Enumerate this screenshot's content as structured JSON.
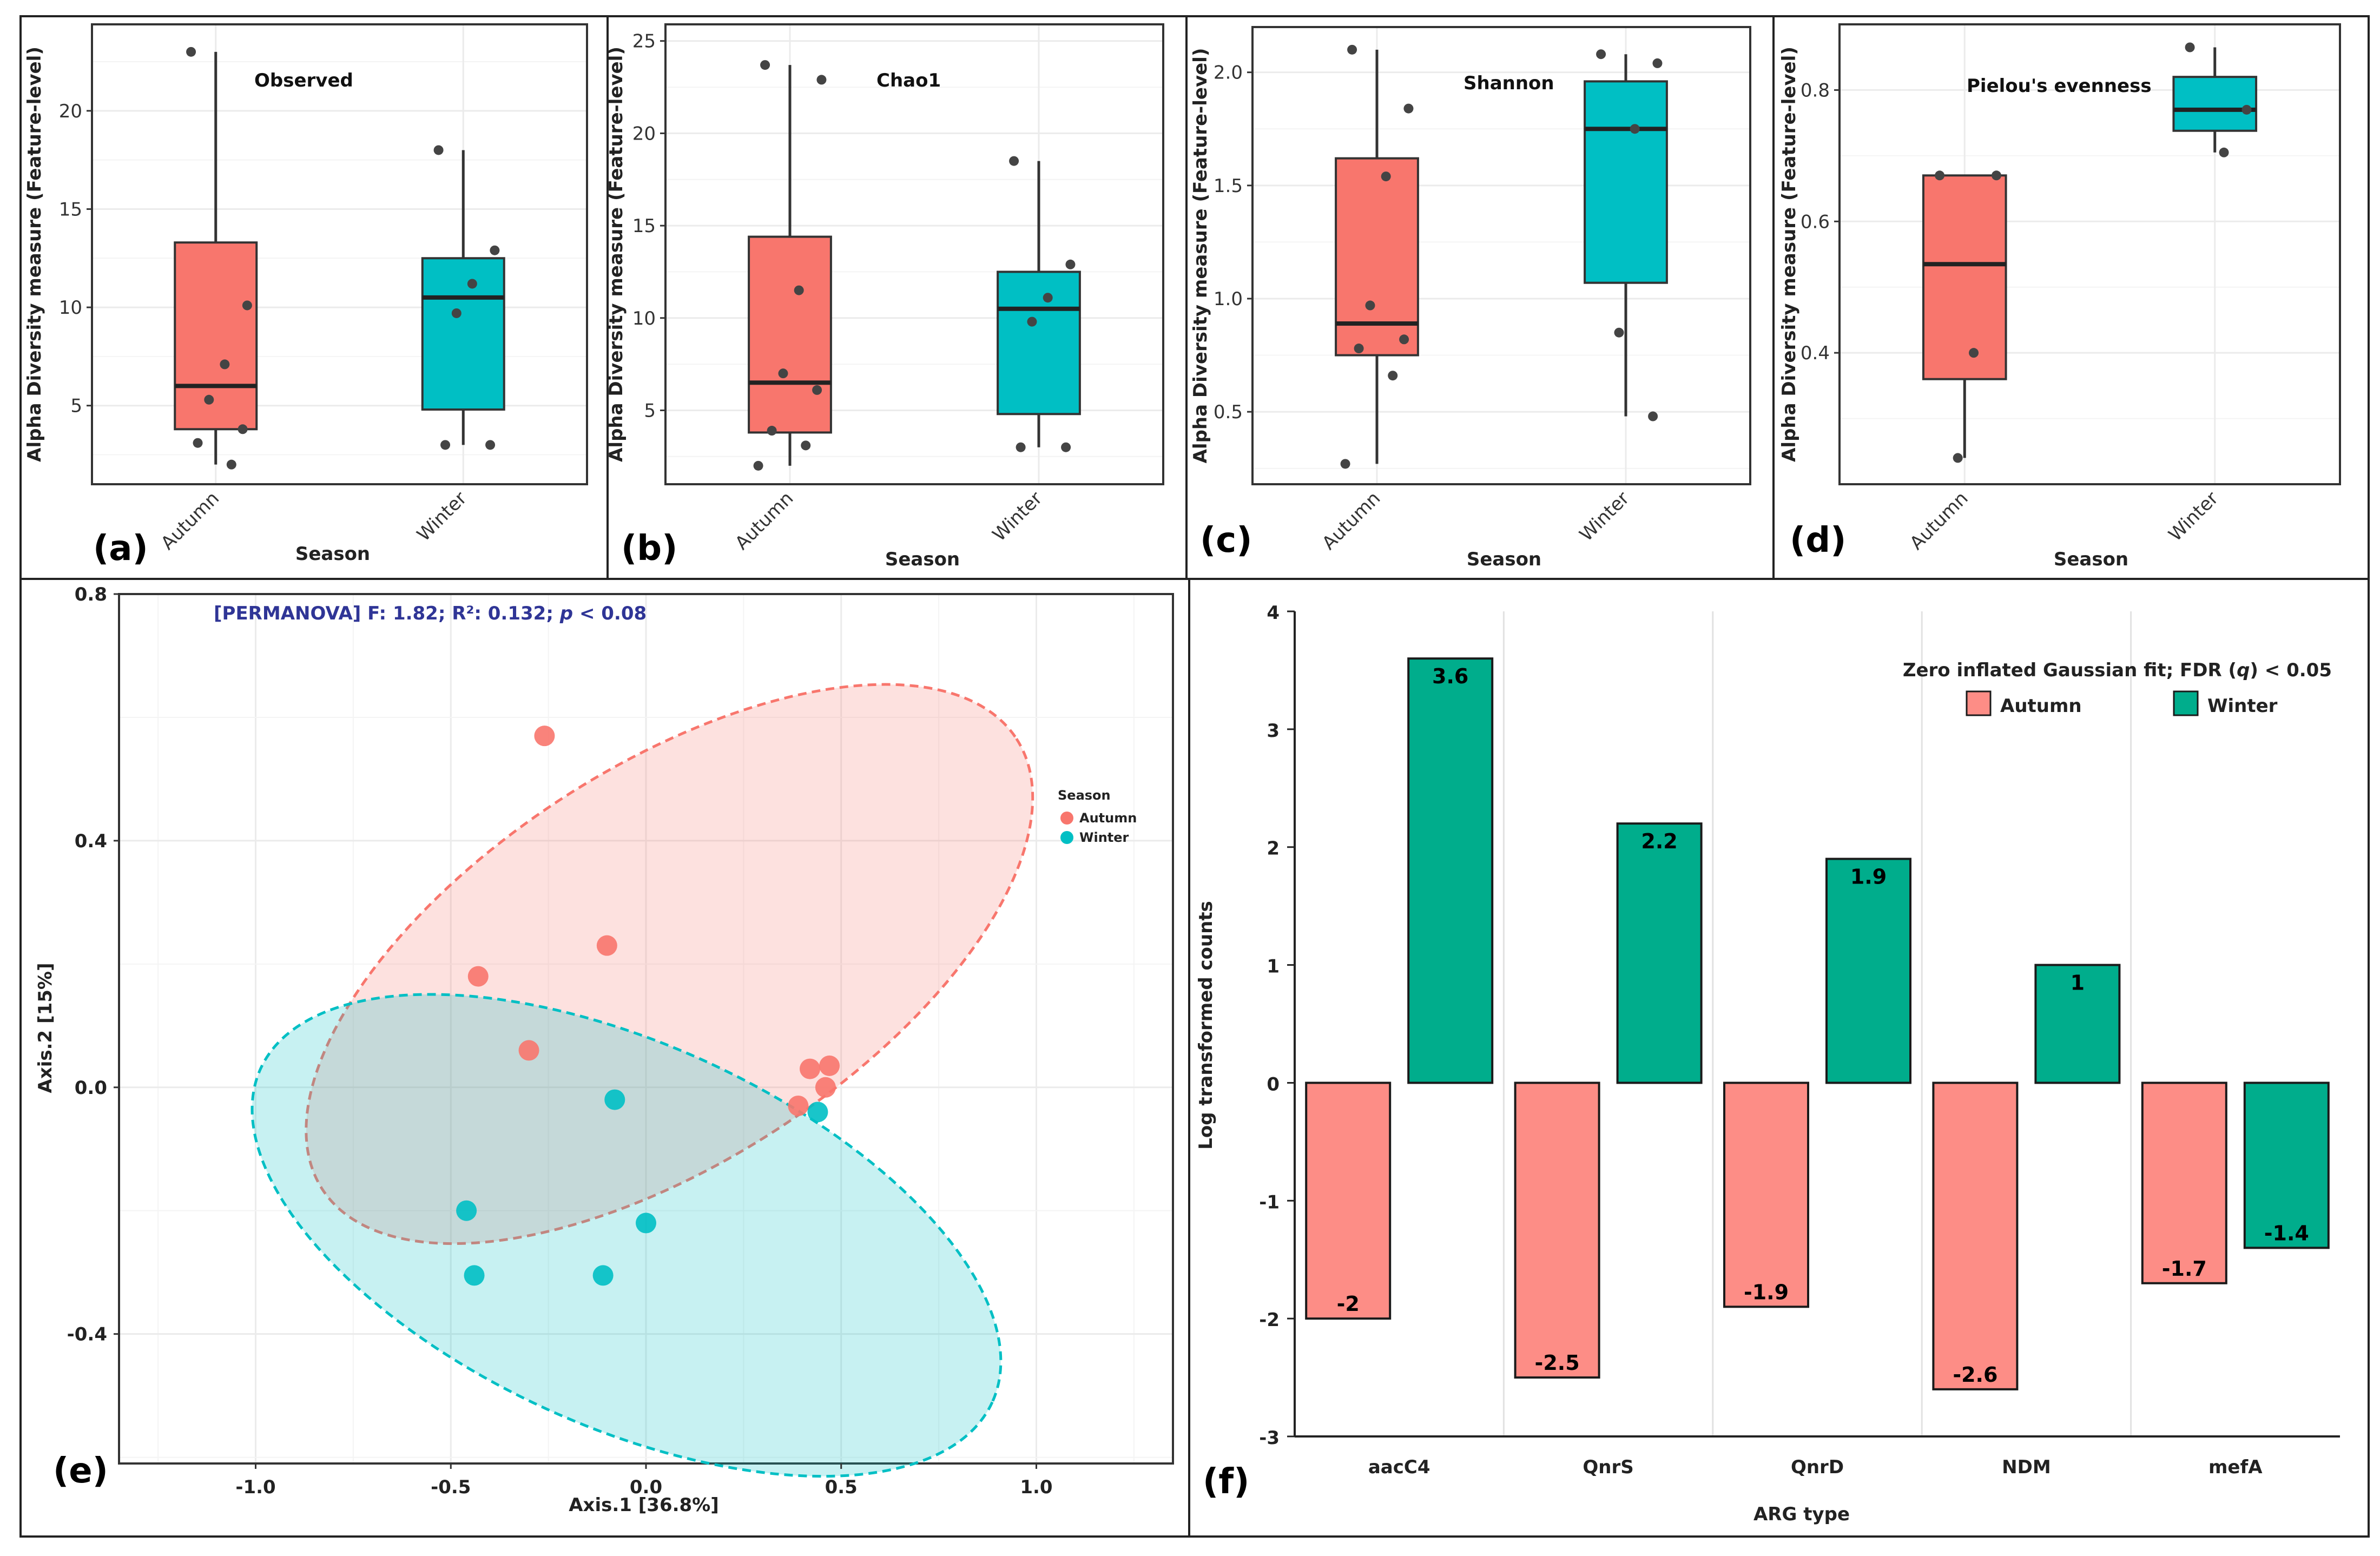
{
  "figure": {
    "labels": {
      "a": "(a)",
      "b": "(b)",
      "c": "(c)",
      "d": "(d)",
      "e": "(e)",
      "f": "(f)"
    },
    "colors": {
      "autumn": "#f8766d",
      "winter": "#00bfc4",
      "bar_autumn": "#fd8d86",
      "bar_winter": "#00ad8c",
      "permanova_text": "#2f3596"
    }
  },
  "chart_data": [
    {
      "id": "a",
      "type": "box",
      "title": "Observed",
      "xlabel": "Season",
      "ylabel": "Alpha Diversity measure (Feature-level)",
      "categories": [
        "Autumn",
        "Winter"
      ],
      "ylim": [
        1,
        24.4
      ],
      "yticks": [
        5,
        10,
        15,
        20
      ],
      "boxes": [
        {
          "group": "Autumn",
          "min": 2,
          "q1": 3.8,
          "median": 6,
          "q3": 13.3,
          "max": 23
        },
        {
          "group": "Winter",
          "min": 3,
          "q1": 4.8,
          "median": 10.5,
          "q3": 12.5,
          "max": 18
        }
      ],
      "points": [
        {
          "group": "Autumn",
          "values": [
            23,
            10.1,
            7.1,
            5.3,
            3.8,
            3.1,
            2
          ]
        },
        {
          "group": "Winter",
          "values": [
            18,
            12.9,
            11.2,
            9.7,
            3,
            3
          ]
        }
      ]
    },
    {
      "id": "b",
      "type": "box",
      "title": "Chao1",
      "xlabel": "Season",
      "ylabel": "Alpha Diversity measure (Feature-level)",
      "categories": [
        "Autumn",
        "Winter"
      ],
      "ylim": [
        1,
        25.9
      ],
      "yticks": [
        5,
        10,
        15,
        20,
        25
      ],
      "boxes": [
        {
          "group": "Autumn",
          "min": 2,
          "q1": 3.8,
          "median": 6.5,
          "q3": 14.4,
          "max": 23.7
        },
        {
          "group": "Winter",
          "min": 3,
          "q1": 4.8,
          "median": 10.5,
          "q3": 12.5,
          "max": 18.5
        }
      ],
      "points": [
        {
          "group": "Autumn",
          "values": [
            23.7,
            22.9,
            11.5,
            7,
            6.1,
            3.9,
            3.1,
            2
          ]
        },
        {
          "group": "Winter",
          "values": [
            18.5,
            12.9,
            11.1,
            9.8,
            3,
            3
          ]
        }
      ]
    },
    {
      "id": "c",
      "type": "box",
      "title": "Shannon",
      "xlabel": "Season",
      "ylabel": "Alpha Diversity measure (Feature-level)",
      "categories": [
        "Autumn",
        "Winter"
      ],
      "ylim": [
        0.18,
        2.2
      ],
      "yticks": [
        0.5,
        1.0,
        1.5,
        2.0
      ],
      "yticklabels": [
        "0.5",
        "1.0",
        "1.5",
        "2.0"
      ],
      "boxes": [
        {
          "group": "Autumn",
          "min": 0.27,
          "q1": 0.75,
          "median": 0.89,
          "q3": 1.62,
          "max": 2.1
        },
        {
          "group": "Winter",
          "min": 0.48,
          "q1": 1.07,
          "median": 1.75,
          "q3": 1.96,
          "max": 2.08
        }
      ],
      "points": [
        {
          "group": "Autumn",
          "values": [
            2.1,
            1.84,
            1.54,
            0.97,
            0.82,
            0.78,
            0.66,
            0.27
          ]
        },
        {
          "group": "Winter",
          "values": [
            2.08,
            2.04,
            1.75,
            0.85,
            0.48
          ]
        }
      ]
    },
    {
      "id": "d",
      "type": "box",
      "title": "Pielou's evenness",
      "xlabel": "Season",
      "ylabel": "Alpha Diversity measure (Feature-level)",
      "categories": [
        "Autumn",
        "Winter"
      ],
      "ylim": [
        0.2,
        0.9
      ],
      "yticks": [
        0.4,
        0.6,
        0.8
      ],
      "yticklabels": [
        "0.4",
        "0.6",
        "0.8"
      ],
      "boxes": [
        {
          "group": "Autumn",
          "min": 0.24,
          "q1": 0.36,
          "median": 0.535,
          "q3": 0.67,
          "max": 0.67
        },
        {
          "group": "Winter",
          "min": 0.705,
          "q1": 0.738,
          "median": 0.77,
          "q3": 0.82,
          "max": 0.865
        }
      ],
      "points": [
        {
          "group": "Autumn",
          "values": [
            0.67,
            0.67,
            0.4,
            0.24
          ]
        },
        {
          "group": "Winter",
          "values": [
            0.865,
            0.77,
            0.705
          ]
        }
      ]
    },
    {
      "id": "e",
      "type": "scatter",
      "title": "[PERMANOVA] F: 1.82; R²: 0.132;",
      "title_p": "p",
      "title_tail": " < 0.08",
      "xlabel": "Axis.1   [36.8%]",
      "ylabel": "Axis.2   [15%]",
      "xlim": [
        -1.35,
        1.35
      ],
      "ylim": [
        -0.61,
        0.8
      ],
      "xticks": [
        -1.0,
        -0.5,
        0.0,
        0.5,
        1.0
      ],
      "xticklabels": [
        "-1.0",
        "-0.5",
        "0.0",
        "0.5",
        "1.0"
      ],
      "yticks": [
        -0.4,
        0.0,
        0.4,
        0.8
      ],
      "yticklabels": [
        "-0.4",
        "0.0",
        "0.4",
        "0.8"
      ],
      "legend": {
        "title": "Season",
        "entries": [
          "Autumn",
          "Winter"
        ],
        "position": "right"
      },
      "series": [
        {
          "name": "Autumn",
          "points": [
            [
              -0.26,
              0.57
            ],
            [
              -0.1,
              0.23
            ],
            [
              -0.43,
              0.18
            ],
            [
              -0.3,
              0.06
            ],
            [
              0.42,
              0.03
            ],
            [
              0.47,
              0.035
            ],
            [
              0.46,
              0.0
            ],
            [
              0.39,
              -0.03
            ]
          ]
        },
        {
          "name": "Winter",
          "points": [
            [
              -0.08,
              -0.02
            ],
            [
              0.44,
              -0.04
            ],
            [
              -0.46,
              -0.2
            ],
            [
              0.0,
              -0.22
            ],
            [
              -0.44,
              -0.305
            ],
            [
              -0.11,
              -0.305
            ]
          ]
        }
      ],
      "ellipses": [
        {
          "name": "Autumn",
          "center": [
            0.06,
            0.2
          ],
          "semi_axes": [
            1.06,
            0.32
          ],
          "angle_deg": -33
        },
        {
          "name": "Winter",
          "center": [
            -0.05,
            -0.24
          ],
          "semi_axes": [
            1.03,
            0.31
          ],
          "angle_deg": 24.5
        }
      ]
    },
    {
      "id": "f",
      "type": "bar",
      "title": "Zero inflated Gaussian fit; FDR (",
      "title_q": "q",
      "title_tail": ") < 0.05",
      "xlabel": "ARG type",
      "ylabel": "Log transformed counts",
      "categories": [
        "aacC4",
        "QnrS",
        "QnrD",
        "NDM",
        "mefA"
      ],
      "ylim": [
        -3,
        4
      ],
      "yticks": [
        -3,
        -2,
        -1,
        0,
        1,
        2,
        3,
        4
      ],
      "legend": {
        "entries": [
          "Autumn",
          "Winter"
        ],
        "position": "top-right"
      },
      "series": [
        {
          "name": "Autumn",
          "values": [
            -2,
            -2.5,
            -1.9,
            -2.6,
            -1.7
          ],
          "labels": [
            "-2",
            "-2.5",
            "-1.9",
            "-2.6",
            "-1.7"
          ]
        },
        {
          "name": "Winter",
          "values": [
            3.6,
            2.2,
            1.9,
            1,
            -1.4
          ],
          "labels": [
            "3.6",
            "2.2",
            "1.9",
            "1",
            "-1.4"
          ]
        }
      ]
    }
  ]
}
